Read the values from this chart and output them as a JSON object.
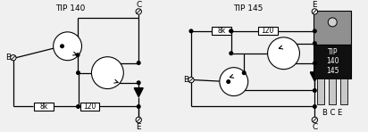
{
  "title_left": "TIP 140",
  "title_right": "TIP 145",
  "res_8k": "8k",
  "res_120": "120",
  "label_BCE": "B C E",
  "label_tip": "TIP\n140\n145",
  "bg_color": "#f0f0f0",
  "line_color": "#000000",
  "package_tab_color": "#909090",
  "package_body_color": "#101010",
  "package_pin_color": "#c8c8c8",
  "package_hole_color": "#d0d0d0",
  "fig_width": 4.12,
  "fig_height": 1.48,
  "dpi": 100
}
